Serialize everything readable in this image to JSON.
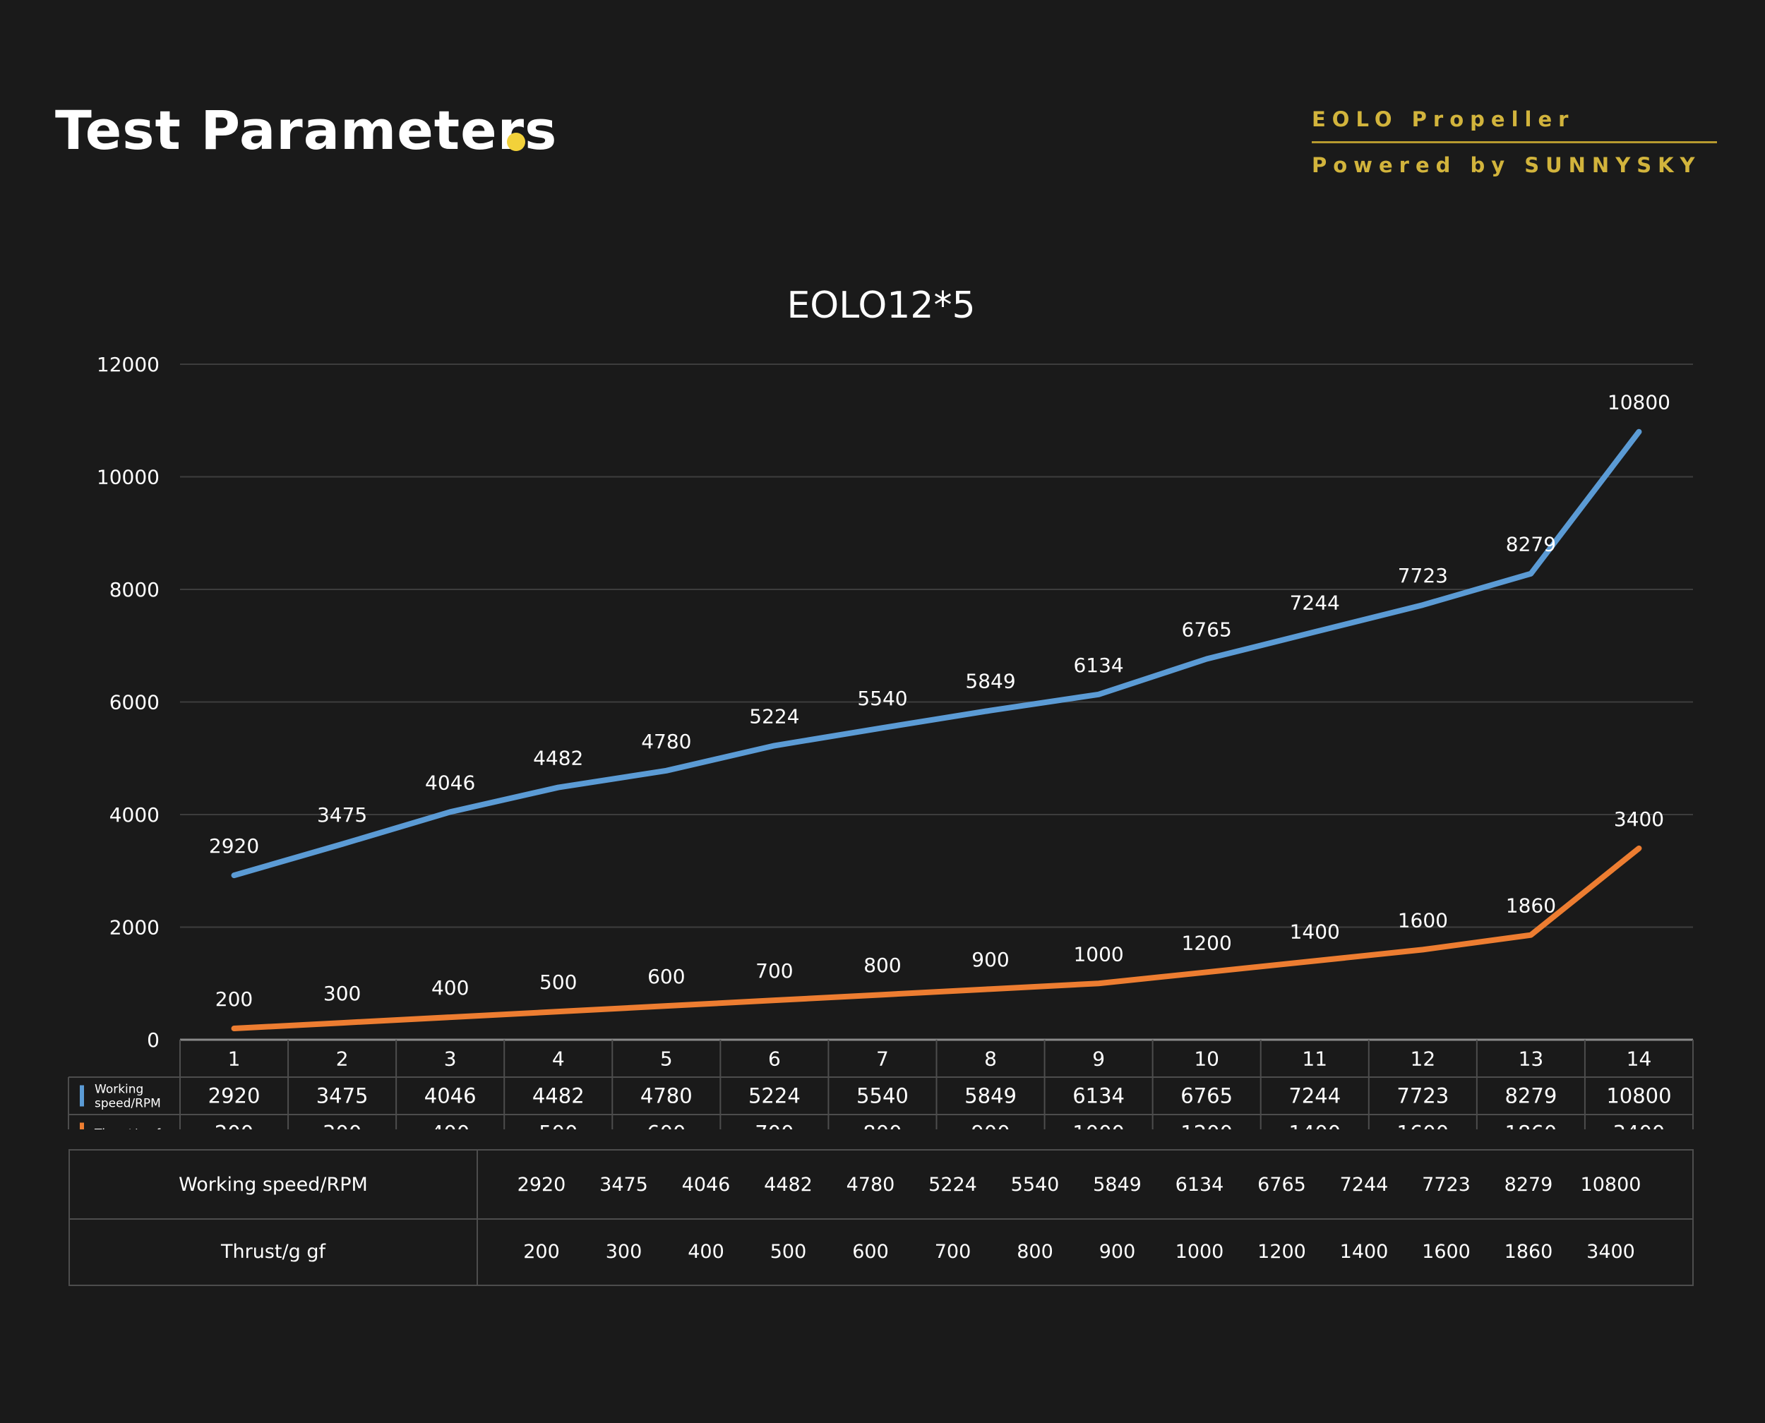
{
  "header": {
    "title": "Test Parameters",
    "brand_line1": "EOLO Propeller",
    "brand_line2": "Powered by SUNNYSKY",
    "accent_color": "#f2d13a",
    "brand_color": "#d2b43c"
  },
  "chart_data": {
    "type": "line",
    "title": "EOLO12*5",
    "categories": [
      "1",
      "2",
      "3",
      "4",
      "5",
      "6",
      "7",
      "8",
      "9",
      "10",
      "11",
      "12",
      "13",
      "14"
    ],
    "ylim": [
      0,
      12000
    ],
    "yticks": [
      0,
      2000,
      4000,
      6000,
      8000,
      10000,
      12000
    ],
    "grid": true,
    "series": [
      {
        "name": "Working speed/RPM",
        "legend_label": "Working speed/RPM",
        "color": "#5b9bd5",
        "values": [
          2920,
          3475,
          4046,
          4482,
          4780,
          5224,
          5540,
          5849,
          6134,
          6765,
          7244,
          7723,
          8279,
          10800
        ]
      },
      {
        "name": "Thrust/g gf",
        "legend_label": "Thrust/g gf",
        "color": "#ed7d31",
        "values": [
          200,
          300,
          400,
          500,
          600,
          700,
          800,
          900,
          1000,
          1200,
          1400,
          1600,
          1860,
          3400
        ]
      }
    ]
  },
  "summary_table": {
    "rows": [
      {
        "label": "Working speed/RPM",
        "values": [
          "2920",
          "3475",
          "4046",
          "4482",
          "4780",
          "5224",
          "5540",
          "5849",
          "6134",
          "6765",
          "7244",
          "7723",
          "8279",
          "10800"
        ]
      },
      {
        "label": "Thrust/g gf",
        "values": [
          "200",
          "300",
          "400",
          "500",
          "600",
          "700",
          "800",
          "900",
          "1000",
          "1200",
          "1400",
          "1600",
          "1860",
          "3400"
        ]
      }
    ]
  }
}
